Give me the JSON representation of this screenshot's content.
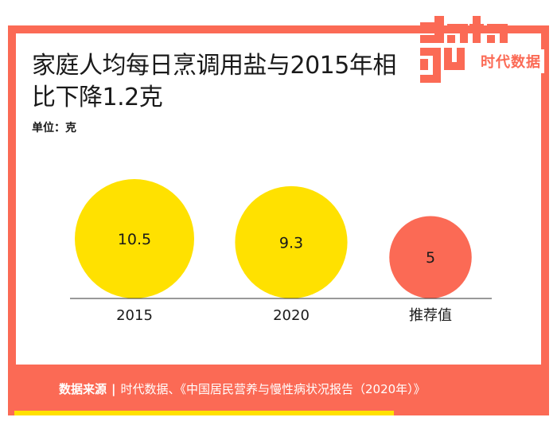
{
  "title": "家庭人均每日烹调用盐与2015年相比下降1.2克",
  "unit": "单位：克",
  "brand": {
    "logo_text": "data good",
    "name": "时代数据"
  },
  "source": {
    "label": "数据来源",
    "text": "时代数据、《中国居民营养与慢性病状况报告（2020年）》"
  },
  "colors": {
    "accent": "#fb6a55",
    "highlight": "#ffe100",
    "text": "#1a1a1a"
  },
  "chart_data": {
    "type": "bubble",
    "title": "家庭人均每日烹调用盐与2015年相比下降1.2克",
    "ylabel": "单位：克",
    "categories": [
      "2015",
      "2020",
      "推荐值"
    ],
    "values": [
      10.5,
      9.3,
      5
    ],
    "colors": [
      "#ffe100",
      "#ffe100",
      "#fb6a55"
    ],
    "legend": "none",
    "grid": false
  }
}
